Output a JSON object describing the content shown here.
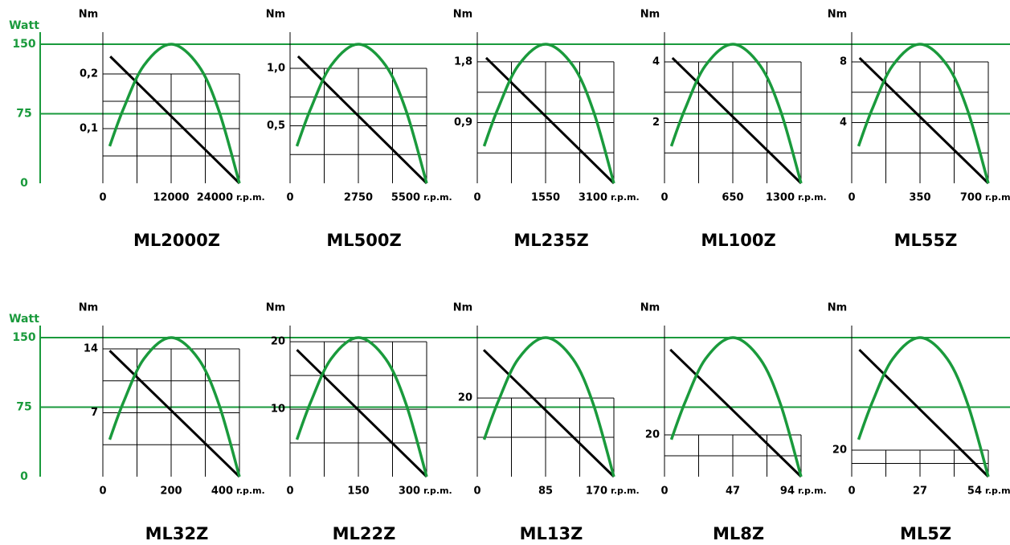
{
  "chart_data": [
    {
      "type": "line",
      "title": "ML2000Z",
      "ylabel": "Nm",
      "xlabel": "r.p.m.",
      "y2label": "Watt",
      "xlim": [
        0,
        24000
      ],
      "xticks": [
        0,
        12000,
        24000
      ],
      "ylim": [
        0,
        0.2765
      ],
      "yticks": [
        {
          "value": 0.1,
          "label": "0,1"
        },
        {
          "value": 0.2,
          "label": "0,2"
        }
      ],
      "y2lim": [
        0,
        163
      ],
      "y2ticks": [
        0,
        75,
        150
      ],
      "grid": true,
      "series": [
        {
          "color": "#000000",
          "x": [
            1300,
            24000
          ],
          "values": [
            0.232,
            0
          ]
        },
        {
          "color": "#1a9a3c",
          "axis": "y2",
          "x": [
            1200,
            3600,
            7200,
            12000,
            16800,
            20400,
            24000
          ],
          "values": [
            40,
            80,
            127,
            150,
            127,
            78,
            0
          ]
        }
      ]
    },
    {
      "type": "line",
      "title": "ML500Z",
      "ylabel": "Nm",
      "xlabel": "r.p.m.",
      "xlim": [
        0,
        5500
      ],
      "xticks": [
        0,
        2750,
        5500
      ],
      "ylim": [
        0,
        1.315
      ],
      "yticks": [
        {
          "value": 0.5,
          "label": "0,5"
        },
        {
          "value": 1.0,
          "label": "1,0"
        }
      ],
      "y2lim": [
        0,
        163
      ],
      "grid": true,
      "series": [
        {
          "color": "#000000",
          "x": [
            320,
            5500
          ],
          "values": [
            1.105,
            0
          ]
        },
        {
          "color": "#1a9a3c",
          "axis": "y2",
          "x": [
            275,
            825,
            1650,
            2750,
            3850,
            4675,
            5500
          ],
          "values": [
            40,
            80,
            127,
            150,
            127,
            78,
            0
          ]
        }
      ]
    },
    {
      "type": "line",
      "title": "ML235Z",
      "ylabel": "Nm",
      "xlabel": "r.p.m.",
      "xlim": [
        0,
        3100
      ],
      "xticks": [
        0,
        1550,
        3100
      ],
      "ylim": [
        0,
        2.24
      ],
      "yticks": [
        {
          "value": 0.9,
          "label": "0,9"
        },
        {
          "value": 1.8,
          "label": "1,8"
        }
      ],
      "y2lim": [
        0,
        163
      ],
      "grid": true,
      "series": [
        {
          "color": "#000000",
          "x": [
            200,
            3100
          ],
          "values": [
            1.86,
            0
          ]
        },
        {
          "color": "#1a9a3c",
          "axis": "y2",
          "x": [
            155,
            465,
            930,
            1550,
            2170,
            2635,
            3100
          ],
          "values": [
            40,
            80,
            127,
            150,
            127,
            78,
            0
          ]
        }
      ]
    },
    {
      "type": "line",
      "title": "ML100Z",
      "ylabel": "Nm",
      "xlabel": "r.p.m.",
      "xlim": [
        0,
        1300
      ],
      "xticks": [
        0,
        650,
        1300
      ],
      "ylim": [
        0,
        4.98
      ],
      "yticks": [
        2,
        4
      ],
      "y2lim": [
        0,
        163
      ],
      "grid": true,
      "series": [
        {
          "color": "#000000",
          "x": [
            75,
            1300
          ],
          "values": [
            4.13,
            0
          ]
        },
        {
          "color": "#1a9a3c",
          "axis": "y2",
          "x": [
            65,
            195,
            390,
            650,
            910,
            1105,
            1300
          ],
          "values": [
            40,
            80,
            127,
            150,
            127,
            78,
            0
          ]
        }
      ]
    },
    {
      "type": "line",
      "title": "ML55Z",
      "ylabel": "Nm",
      "xlabel": "r.p.m.",
      "xlim": [
        0,
        700
      ],
      "xticks": [
        0,
        350,
        700
      ],
      "ylim": [
        0,
        9.96
      ],
      "yticks": [
        4,
        8
      ],
      "y2lim": [
        0,
        163
      ],
      "grid": true,
      "series": [
        {
          "color": "#000000",
          "x": [
            40,
            700
          ],
          "values": [
            8.26,
            0
          ]
        },
        {
          "color": "#1a9a3c",
          "axis": "y2",
          "x": [
            35,
            105,
            210,
            350,
            490,
            595,
            700
          ],
          "values": [
            40,
            80,
            127,
            150,
            127,
            78,
            0
          ]
        }
      ]
    },
    {
      "type": "line",
      "title": "ML32Z",
      "ylabel": "Nm",
      "xlabel": "r.p.m.",
      "y2label": "Watt",
      "xlim": [
        0,
        400
      ],
      "xticks": [
        0,
        200,
        400
      ],
      "ylim": [
        0,
        16.55
      ],
      "yticks": [
        7,
        14
      ],
      "y2lim": [
        0,
        163
      ],
      "y2ticks": [
        0,
        75,
        150
      ],
      "grid": true,
      "series": [
        {
          "color": "#000000",
          "x": [
            20,
            400
          ],
          "values": [
            13.8,
            0
          ]
        },
        {
          "color": "#1a9a3c",
          "axis": "y2",
          "x": [
            20,
            60,
            120,
            200,
            280,
            340,
            400
          ],
          "values": [
            40,
            80,
            127,
            150,
            127,
            78,
            0
          ]
        }
      ]
    },
    {
      "type": "line",
      "title": "ML22Z",
      "ylabel": "Nm",
      "xlabel": "r.p.m.",
      "xlim": [
        0,
        300
      ],
      "xticks": [
        0,
        150,
        300
      ],
      "ylim": [
        0,
        22.4
      ],
      "yticks": [
        10,
        20
      ],
      "y2lim": [
        0,
        163
      ],
      "grid": true,
      "series": [
        {
          "color": "#000000",
          "x": [
            15,
            300
          ],
          "values": [
            18.8,
            0
          ]
        },
        {
          "color": "#1a9a3c",
          "axis": "y2",
          "x": [
            15,
            45,
            90,
            150,
            210,
            255,
            300
          ],
          "values": [
            40,
            80,
            127,
            150,
            127,
            78,
            0
          ]
        }
      ]
    },
    {
      "type": "line",
      "title": "ML13Z",
      "ylabel": "Nm",
      "xlabel": "r.p.m.",
      "xlim": [
        0,
        170
      ],
      "xticks": [
        0,
        85,
        170
      ],
      "ylim": [
        0,
        38.4
      ],
      "yticks": [
        20
      ],
      "y2lim": [
        0,
        163
      ],
      "grid": true,
      "series": [
        {
          "color": "#000000",
          "x": [
            8,
            170
          ],
          "values": [
            32.2,
            0
          ]
        },
        {
          "color": "#1a9a3c",
          "axis": "y2",
          "x": [
            8.5,
            25.5,
            51,
            85,
            119,
            144.5,
            170
          ],
          "values": [
            40,
            80,
            127,
            150,
            127,
            78,
            0
          ]
        }
      ]
    },
    {
      "type": "line",
      "title": "ML8Z",
      "ylabel": "Nm",
      "xlabel": "r.p.m.",
      "xlim": [
        0,
        94
      ],
      "xticks": [
        0,
        47,
        94
      ],
      "ylim": [
        0,
        72.3
      ],
      "yticks": [
        20
      ],
      "y2lim": [
        0,
        163
      ],
      "grid": true,
      "series": [
        {
          "color": "#000000",
          "x": [
            4,
            94
          ],
          "values": [
            60.8,
            0
          ]
        },
        {
          "color": "#1a9a3c",
          "axis": "y2",
          "x": [
            4.7,
            14.1,
            28.2,
            47,
            65.8,
            79.9,
            94
          ],
          "values": [
            40,
            80,
            127,
            150,
            127,
            78,
            0
          ]
        }
      ]
    },
    {
      "type": "line",
      "title": "ML5Z",
      "ylabel": "Nm",
      "xlabel": "r.p.m.",
      "xlim": [
        0,
        54
      ],
      "xticks": [
        0,
        27,
        54
      ],
      "ylim": [
        0,
        114
      ],
      "yticks": [
        20
      ],
      "y2lim": [
        0,
        163
      ],
      "grid": true,
      "series": [
        {
          "color": "#000000",
          "x": [
            3,
            54
          ],
          "values": [
            95.8,
            0
          ]
        },
        {
          "color": "#1a9a3c",
          "axis": "y2",
          "x": [
            2.7,
            8.1,
            16.2,
            27,
            37.8,
            45.9,
            54
          ],
          "values": [
            40,
            80,
            127,
            150,
            127,
            78,
            0
          ]
        }
      ]
    }
  ]
}
